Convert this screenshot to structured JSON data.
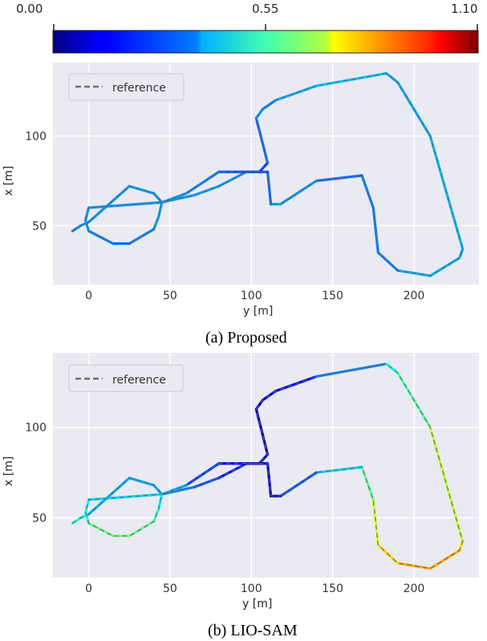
{
  "colorbar": {
    "ticks": [
      "0.00",
      "0.55",
      "1.10"
    ],
    "min": 0,
    "max": 1.1
  },
  "chart_data": [
    {
      "type": "line",
      "caption": "(a) Proposed",
      "xlabel": "y [m]",
      "ylabel": "x [m]",
      "xlim": [
        -22,
        240
      ],
      "ylim": [
        17,
        141
      ],
      "xticks": [
        "0",
        "50",
        "100",
        "150",
        "200"
      ],
      "yticks": [
        "50",
        "100"
      ],
      "grid": true,
      "legend": {
        "position": "top-left",
        "entries": [
          "reference"
        ]
      },
      "colormap": "jet",
      "series": [
        {
          "name": "reference",
          "x": [
            -10,
            -5,
            0,
            25,
            40,
            45,
            65,
            80,
            97,
            105,
            110,
            103,
            107,
            115,
            140,
            183,
            190,
            210,
            230,
            228,
            210,
            190,
            178,
            175,
            168,
            140,
            118,
            112,
            110,
            80,
            60,
            45,
            43,
            40,
            25,
            15,
            0,
            -2,
            0,
            45
          ],
          "y": [
            47,
            50,
            52,
            72,
            68,
            63,
            67,
            72,
            80,
            80,
            85,
            110,
            115,
            120,
            128,
            135,
            130,
            100,
            37,
            32,
            22,
            25,
            35,
            60,
            78,
            75,
            62,
            62,
            80,
            80,
            68,
            63,
            55,
            48,
            40,
            40,
            47,
            53,
            60,
            63
          ],
          "error": [
            0.28,
            0.3,
            0.3,
            0.3,
            0.3,
            0.3,
            0.32,
            0.3,
            0.3,
            0.25,
            0.15,
            0.35,
            0.25,
            0.3,
            0.35,
            0.35,
            0.3,
            0.35,
            0.32,
            0.3,
            0.35,
            0.3,
            0.25,
            0.3,
            0.25,
            0.25,
            0.35,
            0.3,
            0.2,
            0.25,
            0.3,
            0.3,
            0.32,
            0.3,
            0.25,
            0.25,
            0.3,
            0.3,
            0.3,
            0.3
          ]
        }
      ]
    },
    {
      "type": "line",
      "caption": "(b) LIO-SAM",
      "xlabel": "y [m]",
      "ylabel": "x [m]",
      "xlim": [
        -22,
        240
      ],
      "ylim": [
        17,
        141
      ],
      "xticks": [
        "0",
        "50",
        "100",
        "150",
        "200"
      ],
      "yticks": [
        "50",
        "100"
      ],
      "grid": true,
      "legend": {
        "position": "top-left",
        "entries": [
          "reference"
        ]
      },
      "colormap": "jet",
      "series": [
        {
          "name": "reference",
          "x": [
            -10,
            -5,
            0,
            25,
            40,
            45,
            65,
            80,
            97,
            105,
            110,
            103,
            107,
            115,
            140,
            183,
            190,
            210,
            230,
            228,
            210,
            190,
            178,
            175,
            168,
            140,
            118,
            112,
            110,
            80,
            60,
            45,
            43,
            40,
            25,
            15,
            0,
            -2,
            0,
            45
          ],
          "y": [
            47,
            50,
            52,
            72,
            68,
            63,
            67,
            72,
            80,
            80,
            85,
            110,
            115,
            120,
            128,
            135,
            130,
            100,
            37,
            32,
            22,
            25,
            35,
            60,
            78,
            75,
            62,
            62,
            80,
            80,
            68,
            63,
            55,
            48,
            40,
            40,
            47,
            53,
            60,
            63
          ],
          "error": [
            0.45,
            0.45,
            0.35,
            0.3,
            0.35,
            0.3,
            0.25,
            0.2,
            0.1,
            0.05,
            0.05,
            0.05,
            0.1,
            0.1,
            0.15,
            0.4,
            0.45,
            0.55,
            0.7,
            0.75,
            0.8,
            0.75,
            0.7,
            0.6,
            0.45,
            0.3,
            0.15,
            0.05,
            0.1,
            0.1,
            0.3,
            0.35,
            0.45,
            0.5,
            0.55,
            0.55,
            0.5,
            0.45,
            0.4,
            0.35
          ]
        }
      ]
    }
  ]
}
